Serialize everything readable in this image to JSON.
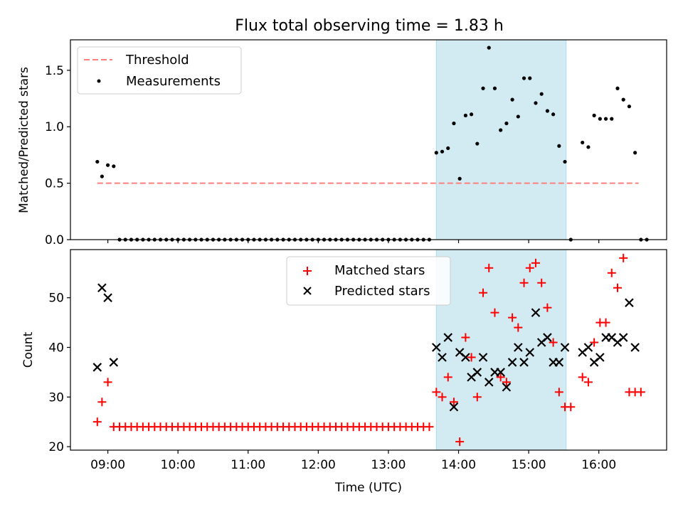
{
  "chart_data": [
    {
      "type": "scatter",
      "title": "Flux total observing time = 1.83 h",
      "xlabel": "",
      "ylabel": "Matched/Predicted stars",
      "ylim": [
        0,
        1.77
      ],
      "yticks": [
        0.0,
        0.5,
        1.0,
        1.5
      ],
      "ytick_labels": [
        "0.0",
        "0.5",
        "1.0",
        "1.5"
      ],
      "highlight_span": {
        "x": [
          "13:41",
          "15:32"
        ],
        "color": "#add8e6"
      },
      "legend_position": "top-left",
      "threshold": {
        "name": "Threshold",
        "value": 0.5,
        "x": [
          "08:51",
          "16:34"
        ],
        "color": "#ff7f7f"
      },
      "series": [
        {
          "name": "Measurements",
          "color": "#000000",
          "marker": "dot",
          "points": [
            [
              "08:51",
              0.69
            ],
            [
              "08:55",
              0.56
            ],
            [
              "09:00",
              0.66
            ],
            [
              "09:05",
              0.65
            ],
            [
              "09:10",
              0
            ],
            [
              "09:15",
              0
            ],
            [
              "09:20",
              0
            ],
            [
              "09:25",
              0
            ],
            [
              "09:30",
              0
            ],
            [
              "09:35",
              0
            ],
            [
              "09:40",
              0
            ],
            [
              "09:45",
              0
            ],
            [
              "09:50",
              0
            ],
            [
              "09:55",
              0
            ],
            [
              "10:00",
              0
            ],
            [
              "10:05",
              0
            ],
            [
              "10:10",
              0
            ],
            [
              "10:15",
              0
            ],
            [
              "10:20",
              0
            ],
            [
              "10:25",
              0
            ],
            [
              "10:30",
              0
            ],
            [
              "10:35",
              0
            ],
            [
              "10:40",
              0
            ],
            [
              "10:45",
              0
            ],
            [
              "10:50",
              0
            ],
            [
              "10:55",
              0
            ],
            [
              "11:00",
              0
            ],
            [
              "11:05",
              0
            ],
            [
              "11:10",
              0
            ],
            [
              "11:15",
              0
            ],
            [
              "11:20",
              0
            ],
            [
              "11:25",
              0
            ],
            [
              "11:30",
              0
            ],
            [
              "11:35",
              0
            ],
            [
              "11:40",
              0
            ],
            [
              "11:45",
              0
            ],
            [
              "11:50",
              0
            ],
            [
              "11:55",
              0
            ],
            [
              "12:00",
              0
            ],
            [
              "12:05",
              0
            ],
            [
              "12:10",
              0
            ],
            [
              "12:15",
              0
            ],
            [
              "12:20",
              0
            ],
            [
              "12:25",
              0
            ],
            [
              "12:30",
              0
            ],
            [
              "12:35",
              0
            ],
            [
              "12:40",
              0
            ],
            [
              "12:45",
              0
            ],
            [
              "12:50",
              0
            ],
            [
              "12:55",
              0
            ],
            [
              "13:00",
              0
            ],
            [
              "13:05",
              0
            ],
            [
              "13:10",
              0
            ],
            [
              "13:15",
              0
            ],
            [
              "13:20",
              0
            ],
            [
              "13:25",
              0
            ],
            [
              "13:30",
              0
            ],
            [
              "13:35",
              0
            ],
            [
              "13:41",
              0.77
            ],
            [
              "13:46",
              0.78
            ],
            [
              "13:51",
              0.81
            ],
            [
              "13:56",
              1.03
            ],
            [
              "14:01",
              0.54
            ],
            [
              "14:06",
              1.1
            ],
            [
              "14:11",
              1.11
            ],
            [
              "14:16",
              0.85
            ],
            [
              "14:21",
              1.34
            ],
            [
              "14:26",
              1.7
            ],
            [
              "14:31",
              1.34
            ],
            [
              "14:36",
              0.97
            ],
            [
              "14:41",
              1.03
            ],
            [
              "14:46",
              1.24
            ],
            [
              "14:51",
              1.09
            ],
            [
              "14:56",
              1.43
            ],
            [
              "15:01",
              1.43
            ],
            [
              "15:06",
              1.21
            ],
            [
              "15:11",
              1.29
            ],
            [
              "15:16",
              1.14
            ],
            [
              "15:21",
              1.11
            ],
            [
              "15:26",
              0.83
            ],
            [
              "15:31",
              0.69
            ],
            [
              "15:36",
              0
            ],
            [
              "15:46",
              0.86
            ],
            [
              "15:51",
              0.82
            ],
            [
              "15:56",
              1.1
            ],
            [
              "16:01",
              1.07
            ],
            [
              "16:06",
              1.07
            ],
            [
              "16:11",
              1.07
            ],
            [
              "16:16",
              1.34
            ],
            [
              "16:21",
              1.24
            ],
            [
              "16:26",
              1.18
            ],
            [
              "16:31",
              0.77
            ],
            [
              "16:36",
              0
            ],
            [
              "16:41",
              0
            ]
          ]
        }
      ]
    },
    {
      "type": "scatter",
      "title": "",
      "xlabel": "Time (UTC)",
      "ylabel": "Count",
      "ylim": [
        19.3,
        59.7
      ],
      "xlim": [
        "08:28",
        "16:58"
      ],
      "yticks": [
        20,
        30,
        40,
        50
      ],
      "ytick_labels": [
        "20",
        "30",
        "40",
        "50"
      ],
      "xticks": [
        "09:00",
        "10:00",
        "11:00",
        "12:00",
        "13:00",
        "14:00",
        "15:00",
        "16:00"
      ],
      "xtick_labels": [
        "09:00",
        "10:00",
        "11:00",
        "12:00",
        "13:00",
        "14:00",
        "15:00",
        "16:00"
      ],
      "highlight_span": {
        "x": [
          "13:41",
          "15:32"
        ],
        "color": "#add8e6"
      },
      "legend_position": "top-center",
      "series": [
        {
          "name": "Matched stars",
          "color": "#ff0000",
          "marker": "plus",
          "points": [
            [
              "08:51",
              25
            ],
            [
              "08:55",
              29
            ],
            [
              "09:00",
              33
            ],
            [
              "09:05",
              24
            ],
            [
              "09:10",
              24
            ],
            [
              "09:15",
              24
            ],
            [
              "09:20",
              24
            ],
            [
              "09:25",
              24
            ],
            [
              "09:30",
              24
            ],
            [
              "09:35",
              24
            ],
            [
              "09:40",
              24
            ],
            [
              "09:45",
              24
            ],
            [
              "09:50",
              24
            ],
            [
              "09:55",
              24
            ],
            [
              "10:00",
              24
            ],
            [
              "10:05",
              24
            ],
            [
              "10:10",
              24
            ],
            [
              "10:15",
              24
            ],
            [
              "10:20",
              24
            ],
            [
              "10:25",
              24
            ],
            [
              "10:30",
              24
            ],
            [
              "10:35",
              24
            ],
            [
              "10:40",
              24
            ],
            [
              "10:45",
              24
            ],
            [
              "10:50",
              24
            ],
            [
              "10:55",
              24
            ],
            [
              "11:00",
              24
            ],
            [
              "11:05",
              24
            ],
            [
              "11:10",
              24
            ],
            [
              "11:15",
              24
            ],
            [
              "11:20",
              24
            ],
            [
              "11:25",
              24
            ],
            [
              "11:30",
              24
            ],
            [
              "11:35",
              24
            ],
            [
              "11:40",
              24
            ],
            [
              "11:45",
              24
            ],
            [
              "11:50",
              24
            ],
            [
              "11:55",
              24
            ],
            [
              "12:00",
              24
            ],
            [
              "12:05",
              24
            ],
            [
              "12:10",
              24
            ],
            [
              "12:15",
              24
            ],
            [
              "12:20",
              24
            ],
            [
              "12:25",
              24
            ],
            [
              "12:30",
              24
            ],
            [
              "12:35",
              24
            ],
            [
              "12:40",
              24
            ],
            [
              "12:45",
              24
            ],
            [
              "12:50",
              24
            ],
            [
              "12:55",
              24
            ],
            [
              "13:00",
              24
            ],
            [
              "13:05",
              24
            ],
            [
              "13:10",
              24
            ],
            [
              "13:15",
              24
            ],
            [
              "13:20",
              24
            ],
            [
              "13:25",
              24
            ],
            [
              "13:30",
              24
            ],
            [
              "13:35",
              24
            ],
            [
              "13:41",
              31
            ],
            [
              "13:46",
              30
            ],
            [
              "13:51",
              34
            ],
            [
              "13:56",
              29
            ],
            [
              "14:01",
              21
            ],
            [
              "14:06",
              42
            ],
            [
              "14:11",
              38
            ],
            [
              "14:16",
              30
            ],
            [
              "14:21",
              51
            ],
            [
              "14:26",
              56
            ],
            [
              "14:31",
              47
            ],
            [
              "14:36",
              34
            ],
            [
              "14:41",
              33
            ],
            [
              "14:46",
              46
            ],
            [
              "14:51",
              44
            ],
            [
              "14:56",
              53
            ],
            [
              "15:01",
              56
            ],
            [
              "15:06",
              57
            ],
            [
              "15:11",
              53
            ],
            [
              "15:16",
              48
            ],
            [
              "15:21",
              41
            ],
            [
              "15:26",
              31
            ],
            [
              "15:31",
              28
            ],
            [
              "15:36",
              28
            ],
            [
              "15:46",
              34
            ],
            [
              "15:51",
              33
            ],
            [
              "15:56",
              41
            ],
            [
              "16:01",
              45
            ],
            [
              "16:06",
              45
            ],
            [
              "16:11",
              55
            ],
            [
              "16:16",
              52
            ],
            [
              "16:21",
              58
            ],
            [
              "16:26",
              31
            ],
            [
              "16:31",
              31
            ],
            [
              "16:36",
              31
            ]
          ]
        },
        {
          "name": "Predicted stars",
          "color": "#000000",
          "marker": "cross",
          "points": [
            [
              "08:51",
              36
            ],
            [
              "08:55",
              52
            ],
            [
              "09:00",
              50
            ],
            [
              "09:05",
              37
            ],
            [
              "13:41",
              40
            ],
            [
              "13:46",
              38
            ],
            [
              "13:51",
              42
            ],
            [
              "13:56",
              28
            ],
            [
              "14:01",
              39
            ],
            [
              "14:06",
              38
            ],
            [
              "14:11",
              34
            ],
            [
              "14:16",
              35
            ],
            [
              "14:21",
              38
            ],
            [
              "14:26",
              33
            ],
            [
              "14:31",
              35
            ],
            [
              "14:36",
              35
            ],
            [
              "14:41",
              32
            ],
            [
              "14:46",
              37
            ],
            [
              "14:51",
              40
            ],
            [
              "14:56",
              37
            ],
            [
              "15:01",
              39
            ],
            [
              "15:06",
              47
            ],
            [
              "15:11",
              41
            ],
            [
              "15:16",
              42
            ],
            [
              "15:21",
              37
            ],
            [
              "15:26",
              37
            ],
            [
              "15:31",
              40
            ],
            [
              "15:46",
              39
            ],
            [
              "15:51",
              40
            ],
            [
              "15:56",
              37
            ],
            [
              "16:01",
              38
            ],
            [
              "16:06",
              42
            ],
            [
              "16:11",
              42
            ],
            [
              "16:16",
              41
            ],
            [
              "16:21",
              42
            ],
            [
              "16:26",
              49
            ],
            [
              "16:31",
              40
            ]
          ]
        }
      ]
    }
  ]
}
